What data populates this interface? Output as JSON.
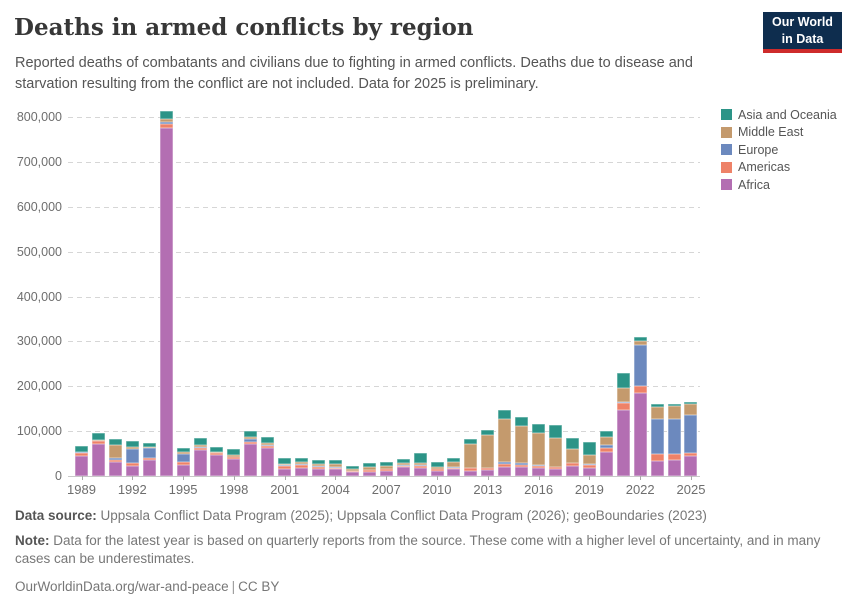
{
  "header": {
    "title": "Deaths in armed conflicts by region",
    "subtitle": "Reported deaths of combatants and civilians due to fighting in armed conflicts. Deaths due to disease and starvation resulting from the conflict are not included. Data for 2025 is preliminary.",
    "logo_line1": "Our World",
    "logo_line2": "in Data",
    "logo_bg": "#0E2D4E",
    "logo_accent": "#CE2B2B"
  },
  "chart_data": {
    "type": "bar",
    "stacked": true,
    "title": "Deaths in armed conflicts by region",
    "xlabel": "",
    "ylabel": "",
    "ylim": [
      0,
      800000
    ],
    "yticks": [
      0,
      100000,
      200000,
      300000,
      400000,
      500000,
      600000,
      700000,
      800000
    ],
    "ytick_labels": [
      "0",
      "100,000",
      "200,000",
      "300,000",
      "400,000",
      "500,000",
      "600,000",
      "700,000",
      "800,000"
    ],
    "grid": "horizontal-dashed",
    "legend_position": "right",
    "legend_order": [
      "Asia and Oceania",
      "Middle East",
      "Europe",
      "Americas",
      "Africa"
    ],
    "x": [
      1989,
      1990,
      1991,
      1992,
      1993,
      1994,
      1995,
      1996,
      1997,
      1998,
      1999,
      2000,
      2001,
      2002,
      2003,
      2004,
      2005,
      2006,
      2007,
      2008,
      2009,
      2010,
      2011,
      2012,
      2013,
      2014,
      2015,
      2016,
      2017,
      2018,
      2019,
      2020,
      2021,
      2022,
      2023,
      2024,
      2025
    ],
    "x_tick_labels": [
      "1989",
      "1992",
      "1995",
      "1998",
      "2001",
      "2004",
      "2007",
      "2010",
      "2013",
      "2016",
      "2019",
      "2022",
      "2025"
    ],
    "x_tick_every": 3,
    "series": [
      {
        "name": "Africa",
        "color": "#B36EB2",
        "values": [
          44000,
          72000,
          32000,
          23000,
          36000,
          776000,
          25000,
          58000,
          47000,
          39000,
          71000,
          62000,
          16000,
          17000,
          15000,
          15000,
          8000,
          9000,
          11000,
          19000,
          18000,
          12000,
          15000,
          12000,
          13000,
          21000,
          19000,
          17000,
          16000,
          22000,
          18000,
          53000,
          148000,
          186000,
          34000,
          36000,
          45000
        ]
      },
      {
        "name": "Americas",
        "color": "#EE8268",
        "values": [
          8000,
          5000,
          4000,
          5000,
          5000,
          8000,
          6000,
          4000,
          4000,
          4000,
          4000,
          4000,
          7000,
          8000,
          6000,
          4000,
          3000,
          4000,
          4000,
          4000,
          5000,
          4000,
          4000,
          5000,
          5000,
          6000,
          6000,
          6000,
          4000,
          6000,
          7000,
          10000,
          15000,
          15000,
          16000,
          13000,
          7000
        ]
      },
      {
        "name": "Europe",
        "color": "#6C89BE",
        "values": [
          500,
          1000,
          4000,
          33000,
          21000,
          5000,
          18000,
          3000,
          1000,
          500,
          7000,
          3000,
          500,
          1000,
          500,
          1000,
          500,
          500,
          500,
          1000,
          1000,
          500,
          500,
          500,
          1000,
          5000,
          4000,
          1000,
          500,
          500,
          2000,
          7000,
          1000,
          91000,
          76000,
          77000,
          84000
        ]
      },
      {
        "name": "Middle East",
        "color": "#C49A6D",
        "values": [
          1500,
          2000,
          30000,
          4000,
          2000,
          7000,
          4000,
          5000,
          2000,
          3000,
          5000,
          4000,
          4000,
          5000,
          6000,
          6000,
          3500,
          6000,
          7000,
          5000,
          6000,
          3500,
          11000,
          54000,
          73000,
          95000,
          82000,
          71000,
          65000,
          32000,
          20000,
          16000,
          32000,
          10000,
          28000,
          30000,
          25000
        ]
      },
      {
        "name": "Asia and Oceania",
        "color": "#2C9487",
        "values": [
          13000,
          15000,
          13000,
          13000,
          10000,
          17000,
          10000,
          15000,
          10000,
          13000,
          13000,
          13000,
          13000,
          10000,
          9000,
          9000,
          7000,
          9000,
          9000,
          9000,
          21000,
          12000,
          10000,
          10000,
          11000,
          20000,
          20000,
          20000,
          28000,
          25000,
          28000,
          14000,
          33000,
          7000,
          6000,
          4000,
          5000
        ]
      }
    ]
  },
  "footer": {
    "datasource_label": "Data source:",
    "datasource_text": " Uppsala Conflict Data Program (2025); Uppsala Conflict Data Program (2026); geoBoundaries (2023)",
    "note_label": "Note:",
    "note_text": " Data for the latest year is based on quarterly reports from the source. These come with a higher level of uncertainty, and in many cases can be underestimates.",
    "url": "OurWorldinData.org/war-and-peace",
    "license": "CC BY"
  }
}
